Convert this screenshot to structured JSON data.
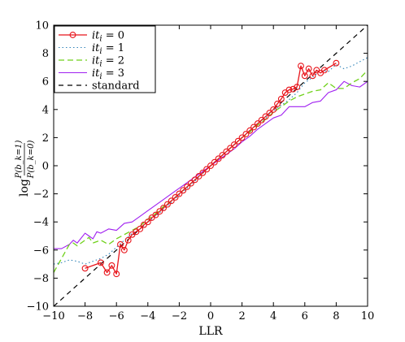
{
  "chart_data": {
    "type": "line",
    "xlabel": "LLR",
    "ylabel": "log P(b_k=1)/P(b_k=0)",
    "xlim": [
      -10,
      10
    ],
    "ylim": [
      -10,
      10
    ],
    "xticks": [
      "−10",
      "−8",
      "−6",
      "−4",
      "−2",
      "0",
      "2",
      "4",
      "6",
      "8",
      "10"
    ],
    "yticks": [
      "−10",
      "−8",
      "−6",
      "−4",
      "−2",
      "0",
      "2",
      "4",
      "6",
      "8",
      "10"
    ],
    "grid": false,
    "legend_position": "top-left",
    "series": [
      {
        "name": "it_i = 0",
        "legend_label": "it",
        "legend_sub": "i",
        "legend_eq": " = 0",
        "color": "#e8141b",
        "style": "solid-circle",
        "x": [
          -8.0,
          -7.0,
          -6.6,
          -6.3,
          -6.0,
          -5.75,
          -5.5,
          -5.25,
          -5.0,
          -4.75,
          -4.5,
          -4.25,
          -4.0,
          -3.75,
          -3.5,
          -3.25,
          -3.0,
          -2.75,
          -2.5,
          -2.25,
          -2.0,
          -1.75,
          -1.5,
          -1.25,
          -1.0,
          -0.75,
          -0.5,
          -0.25,
          0.0,
          0.25,
          0.5,
          0.75,
          1.0,
          1.25,
          1.5,
          1.75,
          2.0,
          2.25,
          2.5,
          2.75,
          3.0,
          3.25,
          3.5,
          3.75,
          4.0,
          4.25,
          4.5,
          4.75,
          5.0,
          5.25,
          5.5,
          5.75,
          6.0,
          6.25,
          6.5,
          6.75,
          7.0,
          7.25,
          8.0
        ],
        "y": [
          -7.3,
          -6.9,
          -7.6,
          -7.1,
          -7.7,
          -5.6,
          -6.0,
          -5.3,
          -4.9,
          -4.7,
          -4.5,
          -4.2,
          -4.0,
          -3.7,
          -3.5,
          -3.25,
          -3.0,
          -2.75,
          -2.5,
          -2.25,
          -2.0,
          -1.75,
          -1.5,
          -1.25,
          -1.0,
          -0.75,
          -0.5,
          -0.25,
          0.0,
          0.25,
          0.5,
          0.75,
          1.0,
          1.25,
          1.5,
          1.75,
          2.0,
          2.25,
          2.5,
          2.75,
          3.0,
          3.25,
          3.5,
          3.75,
          4.0,
          4.4,
          4.75,
          5.2,
          5.4,
          5.45,
          5.6,
          7.1,
          6.4,
          6.9,
          6.4,
          6.8,
          6.6,
          6.8,
          7.3
        ]
      },
      {
        "name": "it_i = 1",
        "legend_label": "it",
        "legend_sub": "i",
        "legend_eq": " = 1",
        "color": "#2f82b8",
        "style": "dotted",
        "x": [
          -10.0,
          -9.5,
          -9.0,
          -8.5,
          -8.0,
          -7.5,
          -7.0,
          -6.5,
          -6.0,
          -5.5,
          -5.0,
          -4.5,
          -4.0,
          -3.5,
          -3.0,
          -2.5,
          -2.0,
          -1.5,
          -1.0,
          -0.5,
          0.0,
          0.5,
          1.0,
          1.5,
          2.0,
          2.5,
          3.0,
          3.5,
          4.0,
          4.5,
          5.0,
          5.5,
          6.0,
          6.5,
          7.0,
          7.5,
          8.0,
          8.5,
          9.0,
          9.5,
          10.0
        ],
        "y": [
          -7.0,
          -6.9,
          -6.7,
          -6.8,
          -7.0,
          -6.8,
          -6.6,
          -6.3,
          -5.8,
          -5.3,
          -4.8,
          -4.5,
          -4.0,
          -3.6,
          -3.1,
          -2.6,
          -2.1,
          -1.6,
          -1.1,
          -0.55,
          0.0,
          0.5,
          1.0,
          1.5,
          2.0,
          2.5,
          3.0,
          3.4,
          3.9,
          4.3,
          4.7,
          5.2,
          5.9,
          6.3,
          6.8,
          6.7,
          7.2,
          6.9,
          7.1,
          7.4,
          7.7
        ]
      },
      {
        "name": "it_i = 2",
        "legend_label": "it",
        "legend_sub": "i",
        "legend_eq": " = 2",
        "color": "#6fd11a",
        "style": "dashed",
        "x": [
          -10.0,
          -9.75,
          -9.5,
          -9.25,
          -9.0,
          -8.75,
          -8.5,
          -8.25,
          -8.0,
          -7.75,
          -7.5,
          -7.0,
          -6.5,
          -6.0,
          -5.5,
          -5.0,
          -4.5,
          -4.0,
          -3.5,
          -3.0,
          -2.5,
          -2.0,
          -1.5,
          -1.0,
          -0.5,
          0.0,
          0.5,
          1.0,
          1.5,
          2.0,
          2.5,
          3.0,
          3.5,
          4.0,
          4.5,
          5.0,
          5.5,
          6.0,
          6.5,
          7.0,
          7.5,
          8.0,
          8.5,
          9.0,
          9.5,
          10.0
        ],
        "y": [
          -7.6,
          -7.1,
          -6.6,
          -6.1,
          -5.6,
          -5.5,
          -5.7,
          -5.5,
          -5.3,
          -5.1,
          -5.5,
          -5.3,
          -5.6,
          -5.2,
          -4.9,
          -4.6,
          -4.3,
          -3.8,
          -3.4,
          -2.9,
          -2.5,
          -2.0,
          -1.5,
          -1.0,
          -0.5,
          0.0,
          0.5,
          1.0,
          1.5,
          2.0,
          2.4,
          2.9,
          3.3,
          3.8,
          4.2,
          4.6,
          4.9,
          5.1,
          5.3,
          5.4,
          5.9,
          5.5,
          5.5,
          5.9,
          6.2,
          6.8
        ]
      },
      {
        "name": "it_i = 3",
        "legend_label": "it",
        "legend_sub": "i",
        "legend_eq": " = 3",
        "color": "#a020f0",
        "style": "solid",
        "x": [
          -10.0,
          -9.5,
          -9.0,
          -8.75,
          -8.5,
          -8.0,
          -7.75,
          -7.5,
          -7.25,
          -7.0,
          -6.5,
          -6.0,
          -5.5,
          -5.0,
          -4.5,
          -4.0,
          -3.5,
          -3.0,
          -2.5,
          -2.0,
          -1.5,
          -1.0,
          -0.5,
          0.0,
          0.5,
          1.0,
          1.5,
          2.0,
          2.5,
          3.0,
          3.5,
          4.0,
          4.5,
          5.0,
          5.5,
          6.0,
          6.5,
          7.0,
          7.5,
          8.0,
          8.5,
          9.0,
          9.5,
          10.0
        ],
        "y": [
          -5.9,
          -5.9,
          -5.6,
          -5.3,
          -5.5,
          -4.8,
          -5.0,
          -5.2,
          -4.7,
          -4.8,
          -4.5,
          -4.6,
          -4.1,
          -4.0,
          -3.6,
          -3.2,
          -2.8,
          -2.4,
          -2.0,
          -1.6,
          -1.2,
          -0.8,
          -0.4,
          0.0,
          0.4,
          0.8,
          1.2,
          1.7,
          2.1,
          2.6,
          3.0,
          3.4,
          3.6,
          4.2,
          4.2,
          4.2,
          4.5,
          4.6,
          5.2,
          5.4,
          6.0,
          5.7,
          5.6,
          6.0
        ]
      },
      {
        "name": "standard",
        "legend_label": "standard",
        "legend_sub": "",
        "legend_eq": "",
        "color": "#000000",
        "style": "dashed-black",
        "x": [
          -10,
          10
        ],
        "y": [
          -10,
          10
        ]
      }
    ]
  }
}
